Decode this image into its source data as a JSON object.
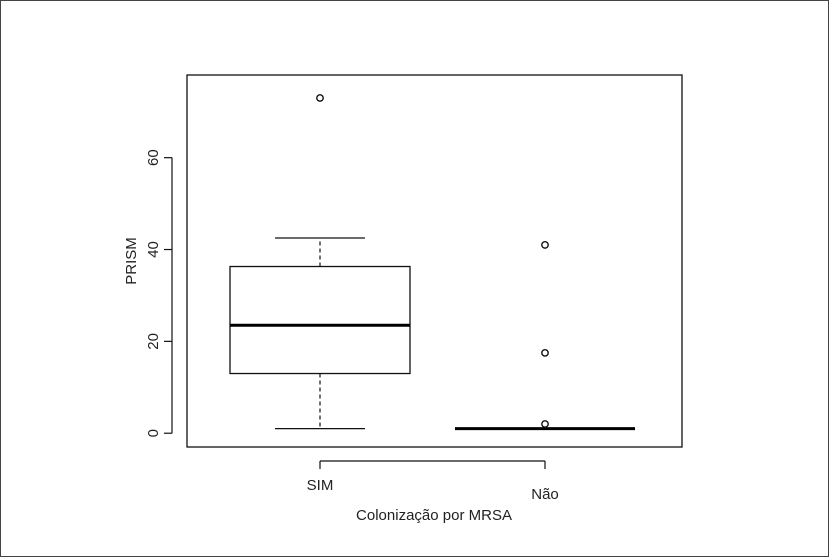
{
  "chart_data": {
    "type": "boxplot",
    "title": "",
    "xlabel": "Colonização por MRSA",
    "ylabel": "PRISM",
    "ylim": [
      -3,
      78
    ],
    "yticks": [
      0,
      20,
      40,
      60
    ],
    "categories": [
      "SIM",
      "Não"
    ],
    "boxes": [
      {
        "category": "SIM",
        "whisker_low": 1,
        "q1": 13,
        "median": 23.5,
        "q3": 36.3,
        "whisker_high": 42.5,
        "outliers": [
          73
        ]
      },
      {
        "category": "Não",
        "whisker_low": 1,
        "q1": 1,
        "median": 1,
        "q3": 1,
        "whisker_high": 1,
        "outliers": [
          41,
          17.5,
          2
        ]
      }
    ],
    "grid": false,
    "legend": "none"
  }
}
